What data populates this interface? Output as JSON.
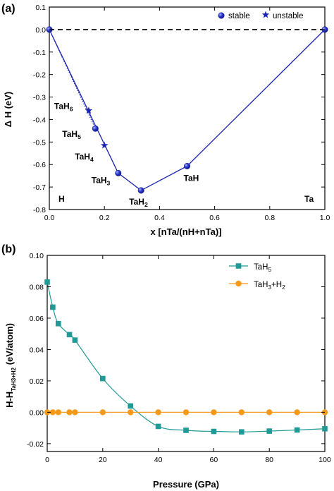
{
  "chart_data": [
    {
      "panel_label": "(a)",
      "type": "line",
      "xlabel": "x [nTa/(nH+nTa)]",
      "ylabel": "Δ H (eV)",
      "xlim": [
        0.0,
        1.0
      ],
      "ylim": [
        -0.8,
        0.1
      ],
      "xticks": [
        "0.0",
        "0.2",
        "0.4",
        "0.6",
        "0.8",
        "1.0"
      ],
      "yticks": [
        "-0.8",
        "-0.7",
        "-0.6",
        "-0.5",
        "-0.4",
        "-0.3",
        "-0.2",
        "-0.1",
        "0.0",
        "0.1"
      ],
      "legend": {
        "position": "top-right",
        "stable_label": "stable",
        "unstable_label": "unstable"
      },
      "series": [
        {
          "name": "stable",
          "marker": "sphere",
          "color": "#1a23b4",
          "x": [
            0.0,
            0.167,
            0.25,
            0.333,
            0.5,
            1.0
          ],
          "y": [
            0.0,
            -0.44,
            -0.638,
            -0.715,
            -0.607,
            0.0
          ]
        },
        {
          "name": "unstable",
          "marker": "star",
          "color": "#1a23b4",
          "x": [
            0.143,
            0.2
          ],
          "y": [
            -0.36,
            -0.515
          ]
        }
      ],
      "hull_line": {
        "x": [
          0.0,
          0.25,
          0.333,
          0.5,
          1.0
        ],
        "y": [
          0.0,
          -0.638,
          -0.715,
          -0.607,
          0.0
        ]
      },
      "dotted_line": {
        "x": [
          0.0,
          0.167
        ],
        "y": [
          0.0,
          -0.44
        ]
      },
      "reference_line_y": 0.0,
      "point_labels": [
        {
          "base": "TaH",
          "sub": "6",
          "x": 0.143,
          "y": -0.36
        },
        {
          "base": "TaH",
          "sub": "5",
          "x": 0.167,
          "y": -0.44
        },
        {
          "base": "TaH",
          "sub": "4",
          "x": 0.2,
          "y": -0.515
        },
        {
          "base": "TaH",
          "sub": "3",
          "x": 0.25,
          "y": -0.638
        },
        {
          "base": "TaH",
          "sub": "2",
          "x": 0.333,
          "y": -0.715
        },
        {
          "base": "TaH",
          "sub": "",
          "x": 0.5,
          "y": -0.607
        }
      ],
      "corner_labels": {
        "left": "H",
        "right": "Ta"
      }
    },
    {
      "panel_label": "(b)",
      "type": "line",
      "xlabel": "Pressure (GPa)",
      "ylabel_main": "H-H",
      "ylabel_sub": "TaH3+H2",
      "ylabel_tail": " (eV/atom)",
      "xlim": [
        0,
        100
      ],
      "ylim": [
        -0.025,
        0.1
      ],
      "xticks": [
        "0",
        "20",
        "40",
        "60",
        "80",
        "100"
      ],
      "yticks": [
        "-0.02",
        "0.00",
        "0.02",
        "0.04",
        "0.06",
        "0.08",
        "0.10"
      ],
      "legend": {
        "position": "top-right"
      },
      "series": [
        {
          "name_base": "TaH",
          "name_sub": "5",
          "marker": "square",
          "color": "#1f9a96",
          "x": [
            0,
            2,
            4,
            8,
            10,
            20,
            30,
            40,
            50,
            60,
            70,
            80,
            90,
            100
          ],
          "y": [
            0.083,
            0.067,
            0.0565,
            0.0495,
            0.046,
            0.0215,
            0.004,
            -0.009,
            -0.0115,
            -0.0122,
            -0.0125,
            -0.012,
            -0.0113,
            -0.0105
          ]
        },
        {
          "name_base": "TaH",
          "name_sub": "3",
          "name_tail": "+H",
          "name_sub2": "2",
          "marker": "circle",
          "color": "#f39a1b",
          "x": [
            0,
            2,
            4,
            8,
            10,
            20,
            30,
            40,
            50,
            60,
            70,
            80,
            90,
            100
          ],
          "y": [
            0,
            0,
            0,
            0,
            0,
            0,
            0,
            0,
            0,
            0,
            0,
            0,
            0,
            0
          ]
        }
      ]
    }
  ]
}
